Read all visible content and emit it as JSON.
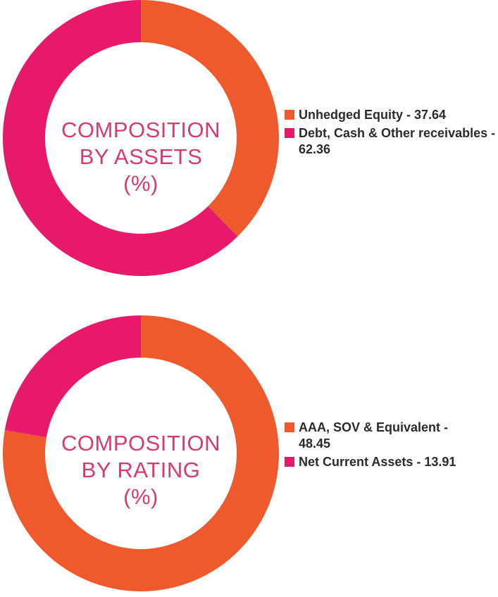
{
  "colors": {
    "orange": "#ee5a2b",
    "pink": "#e8186b",
    "label": "#d63b70"
  },
  "chart_data": [
    {
      "type": "pie",
      "title_lines": [
        "COMPOSITION",
        "BY ASSETS",
        "(%)"
      ],
      "slices": [
        {
          "label": "Unhedged Equity - 37.64",
          "value": 37.64,
          "color": "#ee5a2b"
        },
        {
          "label": "Debt, Cash & Other receivables - 62.36",
          "value": 62.36,
          "color": "#e8186b"
        }
      ]
    },
    {
      "type": "pie",
      "title_lines": [
        "COMPOSITION",
        "BY RATING",
        "(%)"
      ],
      "slices": [
        {
          "label": "AAA, SOV & Equivalent - 48.45",
          "value": 48.45,
          "color": "#ee5a2b"
        },
        {
          "label": "Net Current Assets - 13.91",
          "value": 13.91,
          "color": "#e8186b"
        }
      ]
    }
  ]
}
